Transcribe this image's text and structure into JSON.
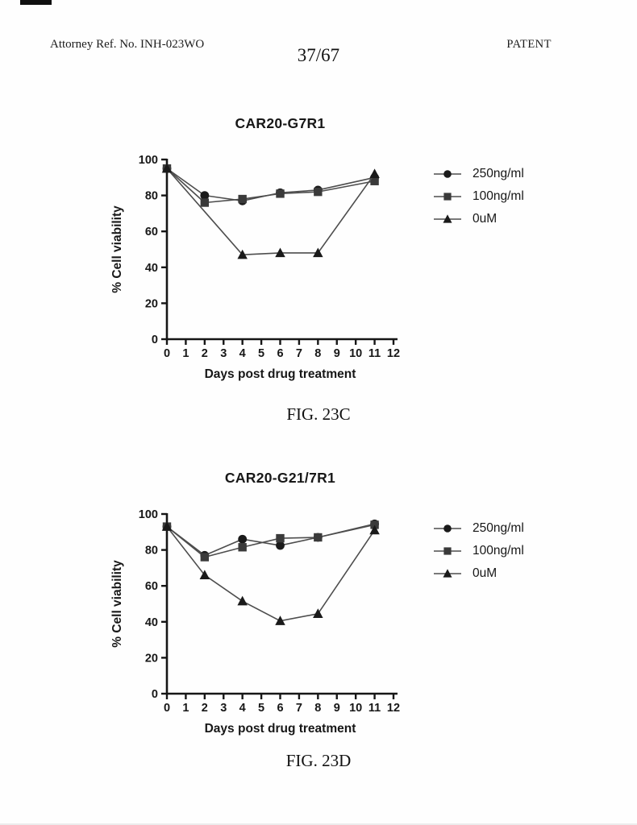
{
  "header": {
    "left": "Attorney Ref. No. INH-023WO",
    "center": "37/67",
    "right": "PATENT"
  },
  "colors": {
    "axis": "#161616",
    "line": "#4d4d4d",
    "text": "#171717"
  },
  "chart_data": [
    {
      "type": "line",
      "title": "CAR20-G7R1",
      "caption": "FIG. 23C",
      "xlabel": "Days post drug treatment",
      "ylabel": "% Cell viability",
      "xlim": [
        0,
        12
      ],
      "ylim": [
        0,
        100
      ],
      "xticks": [
        0,
        1,
        2,
        3,
        4,
        5,
        6,
        7,
        8,
        9,
        10,
        11,
        12
      ],
      "yticks": [
        0,
        20,
        40,
        60,
        80,
        100
      ],
      "grid": false,
      "legend_position": "right",
      "series": [
        {
          "name": "250ng/ml",
          "marker": "circle",
          "color": "#1a1a1a",
          "x": [
            0,
            2,
            4,
            6,
            8,
            11
          ],
          "y": [
            95,
            80,
            77,
            81.5,
            83,
            90
          ]
        },
        {
          "name": "100ng/ml",
          "marker": "square",
          "color": "#3a3a3a",
          "x": [
            0,
            2,
            4,
            6,
            8,
            11
          ],
          "y": [
            95,
            76,
            78,
            81,
            82,
            88
          ]
        },
        {
          "name": "0uM",
          "marker": "triangle",
          "color": "#1a1a1a",
          "x": [
            0,
            4,
            6,
            8,
            11
          ],
          "y": [
            95,
            47,
            48,
            48,
            92
          ]
        }
      ]
    },
    {
      "type": "line",
      "title": "CAR20-G21/7R1",
      "caption": "FIG. 23D",
      "xlabel": "Days post drug treatment",
      "ylabel": "% Cell viability",
      "xlim": [
        0,
        12
      ],
      "ylim": [
        0,
        100
      ],
      "xticks": [
        0,
        1,
        2,
        3,
        4,
        5,
        6,
        7,
        8,
        9,
        10,
        11,
        12
      ],
      "yticks": [
        0,
        20,
        40,
        60,
        80,
        100
      ],
      "grid": false,
      "legend_position": "right",
      "series": [
        {
          "name": "250ng/ml",
          "marker": "circle",
          "color": "#1a1a1a",
          "x": [
            0,
            2,
            4,
            6,
            8,
            11
          ],
          "y": [
            93,
            77,
            86,
            82.5,
            87,
            94.5
          ]
        },
        {
          "name": "100ng/ml",
          "marker": "square",
          "color": "#3a3a3a",
          "x": [
            0,
            2,
            4,
            6,
            8,
            11
          ],
          "y": [
            93,
            76,
            81.5,
            86.5,
            87,
            94
          ]
        },
        {
          "name": "0uM",
          "marker": "triangle",
          "color": "#1a1a1a",
          "x": [
            0,
            2,
            4,
            6,
            8,
            11
          ],
          "y": [
            93,
            66,
            51.5,
            40.5,
            44.5,
            91
          ]
        }
      ]
    }
  ]
}
